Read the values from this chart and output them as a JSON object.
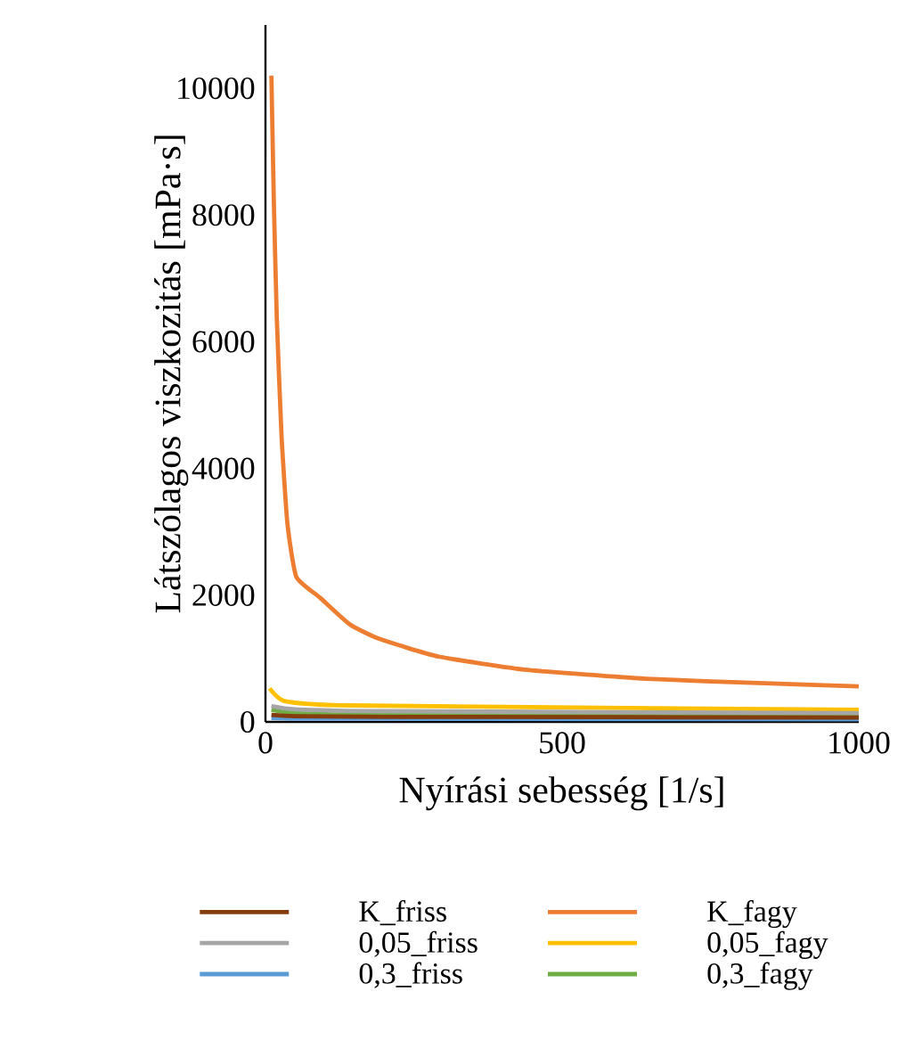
{
  "chart_data": {
    "type": "line",
    "xlabel": "Nyírási sebesség [1/s]",
    "ylabel": "Látszólagos viszkozitás [mPa·s]",
    "xlim": [
      0,
      1000
    ],
    "xticks": [
      0,
      500,
      1000
    ],
    "ylim": [
      0,
      11000
    ],
    "yticks": [
      0,
      2000,
      4000,
      6000,
      8000,
      10000
    ],
    "grid": false,
    "legend": "bottom",
    "marker": "none",
    "line_style": "solid",
    "series": [
      {
        "name": "K_friss",
        "color": "#843c0c",
        "x": [
          10,
          50,
          200,
          1000
        ],
        "values": [
          110,
          90,
          80,
          70
        ]
      },
      {
        "name": "K_fagy",
        "color": "#ed7d31",
        "x": [
          10,
          14,
          19,
          27,
          37,
          52,
          92,
          142,
          192,
          292,
          442,
          642,
          842,
          1000
        ],
        "values": [
          10200,
          8260,
          6400,
          4530,
          3130,
          2290,
          1960,
          1540,
          1310,
          1030,
          820,
          680,
          610,
          560
        ]
      },
      {
        "name": "0,05_friss",
        "color": "#a5a5a5",
        "x": [
          10,
          50,
          200,
          1000
        ],
        "values": [
          250,
          200,
          170,
          140
        ]
      },
      {
        "name": "0,05_fagy",
        "color": "#ffc000",
        "x": [
          7,
          32,
          142,
          1000
        ],
        "values": [
          530,
          330,
          260,
          190
        ]
      },
      {
        "name": "0,3_friss",
        "color": "#5b9bd5",
        "x": [
          10,
          50,
          200,
          1000
        ],
        "values": [
          60,
          50,
          50,
          40
        ]
      },
      {
        "name": "0,3_fagy",
        "color": "#70ad47",
        "x": [
          10,
          50,
          200,
          1000
        ],
        "values": [
          190,
          140,
          110,
          100
        ]
      }
    ]
  }
}
